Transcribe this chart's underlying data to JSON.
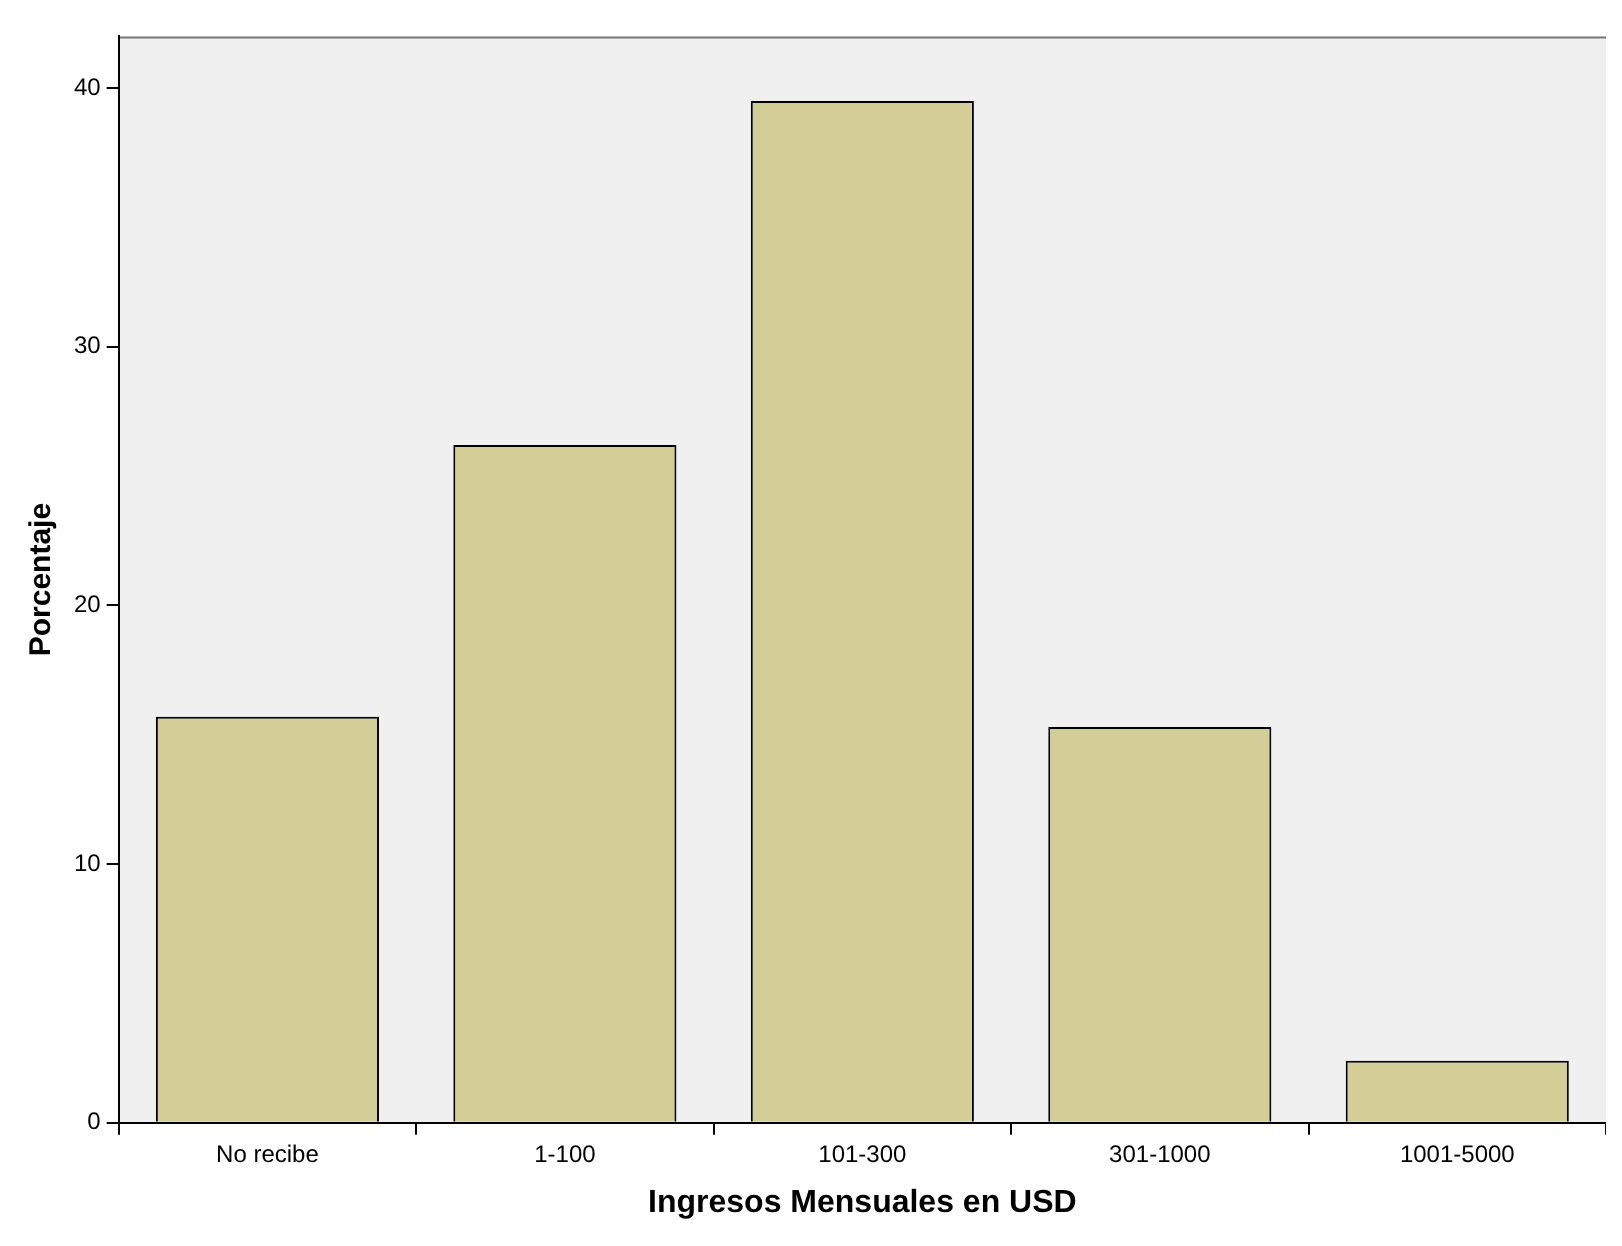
{
  "chart_data": {
    "type": "bar",
    "xlabel": "Ingresos Mensuales en USD",
    "ylabel": "Porcentaje",
    "categories": [
      "No recibe",
      "1-100",
      "101-300",
      "301-1000",
      "1001-5000"
    ],
    "values": [
      15.7,
      26.2,
      39.5,
      15.3,
      2.4
    ],
    "color": "#d3ce97",
    "ylim": [
      0,
      42
    ],
    "yticks": [
      0,
      10,
      20,
      30,
      40
    ],
    "grid": false,
    "legend": false
  }
}
